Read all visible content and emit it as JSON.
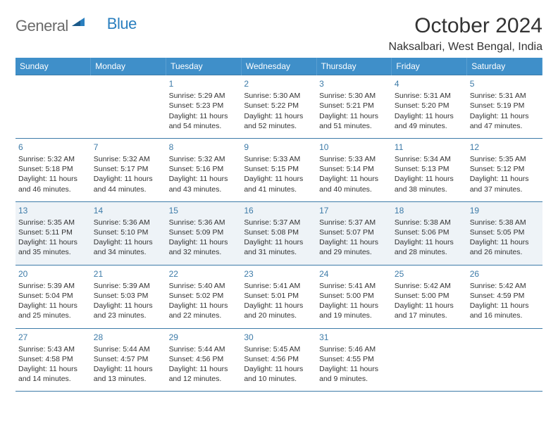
{
  "brand": {
    "name1": "General",
    "name2": "Blue"
  },
  "title": "October 2024",
  "location": "Naksalbari, West Bengal, India",
  "colors": {
    "header_bg": "#3f8fc9",
    "header_text": "#ffffff",
    "border": "#3d7ba8",
    "shaded_bg": "#eef3f7",
    "brand_gray": "#6b6b6b",
    "brand_blue": "#2a7fbf"
  },
  "weekdays": [
    "Sunday",
    "Monday",
    "Tuesday",
    "Wednesday",
    "Thursday",
    "Friday",
    "Saturday"
  ],
  "weeks": [
    [
      {
        "n": "",
        "sr": "",
        "ss": "",
        "dl": ""
      },
      {
        "n": "",
        "sr": "",
        "ss": "",
        "dl": ""
      },
      {
        "n": "1",
        "sr": "Sunrise: 5:29 AM",
        "ss": "Sunset: 5:23 PM",
        "dl": "Daylight: 11 hours and 54 minutes."
      },
      {
        "n": "2",
        "sr": "Sunrise: 5:30 AM",
        "ss": "Sunset: 5:22 PM",
        "dl": "Daylight: 11 hours and 52 minutes."
      },
      {
        "n": "3",
        "sr": "Sunrise: 5:30 AM",
        "ss": "Sunset: 5:21 PM",
        "dl": "Daylight: 11 hours and 51 minutes."
      },
      {
        "n": "4",
        "sr": "Sunrise: 5:31 AM",
        "ss": "Sunset: 5:20 PM",
        "dl": "Daylight: 11 hours and 49 minutes."
      },
      {
        "n": "5",
        "sr": "Sunrise: 5:31 AM",
        "ss": "Sunset: 5:19 PM",
        "dl": "Daylight: 11 hours and 47 minutes."
      }
    ],
    [
      {
        "n": "6",
        "sr": "Sunrise: 5:32 AM",
        "ss": "Sunset: 5:18 PM",
        "dl": "Daylight: 11 hours and 46 minutes."
      },
      {
        "n": "7",
        "sr": "Sunrise: 5:32 AM",
        "ss": "Sunset: 5:17 PM",
        "dl": "Daylight: 11 hours and 44 minutes."
      },
      {
        "n": "8",
        "sr": "Sunrise: 5:32 AM",
        "ss": "Sunset: 5:16 PM",
        "dl": "Daylight: 11 hours and 43 minutes."
      },
      {
        "n": "9",
        "sr": "Sunrise: 5:33 AM",
        "ss": "Sunset: 5:15 PM",
        "dl": "Daylight: 11 hours and 41 minutes."
      },
      {
        "n": "10",
        "sr": "Sunrise: 5:33 AM",
        "ss": "Sunset: 5:14 PM",
        "dl": "Daylight: 11 hours and 40 minutes."
      },
      {
        "n": "11",
        "sr": "Sunrise: 5:34 AM",
        "ss": "Sunset: 5:13 PM",
        "dl": "Daylight: 11 hours and 38 minutes."
      },
      {
        "n": "12",
        "sr": "Sunrise: 5:35 AM",
        "ss": "Sunset: 5:12 PM",
        "dl": "Daylight: 11 hours and 37 minutes."
      }
    ],
    [
      {
        "n": "13",
        "sr": "Sunrise: 5:35 AM",
        "ss": "Sunset: 5:11 PM",
        "dl": "Daylight: 11 hours and 35 minutes."
      },
      {
        "n": "14",
        "sr": "Sunrise: 5:36 AM",
        "ss": "Sunset: 5:10 PM",
        "dl": "Daylight: 11 hours and 34 minutes."
      },
      {
        "n": "15",
        "sr": "Sunrise: 5:36 AM",
        "ss": "Sunset: 5:09 PM",
        "dl": "Daylight: 11 hours and 32 minutes."
      },
      {
        "n": "16",
        "sr": "Sunrise: 5:37 AM",
        "ss": "Sunset: 5:08 PM",
        "dl": "Daylight: 11 hours and 31 minutes."
      },
      {
        "n": "17",
        "sr": "Sunrise: 5:37 AM",
        "ss": "Sunset: 5:07 PM",
        "dl": "Daylight: 11 hours and 29 minutes."
      },
      {
        "n": "18",
        "sr": "Sunrise: 5:38 AM",
        "ss": "Sunset: 5:06 PM",
        "dl": "Daylight: 11 hours and 28 minutes."
      },
      {
        "n": "19",
        "sr": "Sunrise: 5:38 AM",
        "ss": "Sunset: 5:05 PM",
        "dl": "Daylight: 11 hours and 26 minutes."
      }
    ],
    [
      {
        "n": "20",
        "sr": "Sunrise: 5:39 AM",
        "ss": "Sunset: 5:04 PM",
        "dl": "Daylight: 11 hours and 25 minutes."
      },
      {
        "n": "21",
        "sr": "Sunrise: 5:39 AM",
        "ss": "Sunset: 5:03 PM",
        "dl": "Daylight: 11 hours and 23 minutes."
      },
      {
        "n": "22",
        "sr": "Sunrise: 5:40 AM",
        "ss": "Sunset: 5:02 PM",
        "dl": "Daylight: 11 hours and 22 minutes."
      },
      {
        "n": "23",
        "sr": "Sunrise: 5:41 AM",
        "ss": "Sunset: 5:01 PM",
        "dl": "Daylight: 11 hours and 20 minutes."
      },
      {
        "n": "24",
        "sr": "Sunrise: 5:41 AM",
        "ss": "Sunset: 5:00 PM",
        "dl": "Daylight: 11 hours and 19 minutes."
      },
      {
        "n": "25",
        "sr": "Sunrise: 5:42 AM",
        "ss": "Sunset: 5:00 PM",
        "dl": "Daylight: 11 hours and 17 minutes."
      },
      {
        "n": "26",
        "sr": "Sunrise: 5:42 AM",
        "ss": "Sunset: 4:59 PM",
        "dl": "Daylight: 11 hours and 16 minutes."
      }
    ],
    [
      {
        "n": "27",
        "sr": "Sunrise: 5:43 AM",
        "ss": "Sunset: 4:58 PM",
        "dl": "Daylight: 11 hours and 14 minutes."
      },
      {
        "n": "28",
        "sr": "Sunrise: 5:44 AM",
        "ss": "Sunset: 4:57 PM",
        "dl": "Daylight: 11 hours and 13 minutes."
      },
      {
        "n": "29",
        "sr": "Sunrise: 5:44 AM",
        "ss": "Sunset: 4:56 PM",
        "dl": "Daylight: 11 hours and 12 minutes."
      },
      {
        "n": "30",
        "sr": "Sunrise: 5:45 AM",
        "ss": "Sunset: 4:56 PM",
        "dl": "Daylight: 11 hours and 10 minutes."
      },
      {
        "n": "31",
        "sr": "Sunrise: 5:46 AM",
        "ss": "Sunset: 4:55 PM",
        "dl": "Daylight: 11 hours and 9 minutes."
      },
      {
        "n": "",
        "sr": "",
        "ss": "",
        "dl": ""
      },
      {
        "n": "",
        "sr": "",
        "ss": "",
        "dl": ""
      }
    ]
  ],
  "shaded_rows": [
    2
  ]
}
